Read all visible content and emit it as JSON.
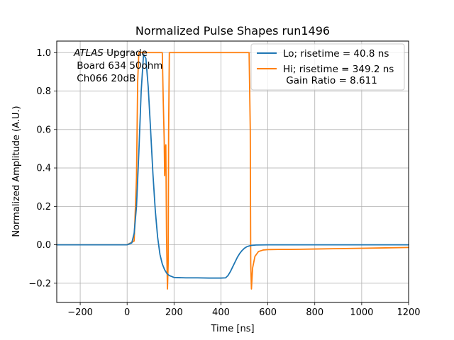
{
  "chart_data": {
    "type": "line",
    "title": "Normalized Pulse Shapes run1496",
    "xlabel": "Time [ns]",
    "ylabel": "Normalized Amplitude (A.U.)",
    "xlim": [
      -300,
      1200
    ],
    "ylim": [
      -0.3,
      1.06
    ],
    "xticks": [
      -200,
      0,
      200,
      400,
      600,
      800,
      1000,
      1200
    ],
    "xtick_labels": [
      "−200",
      "0",
      "200",
      "400",
      "600",
      "800",
      "1000",
      "1200"
    ],
    "yticks": [
      -0.2,
      0.0,
      0.2,
      0.4,
      0.6,
      0.8,
      1.0
    ],
    "ytick_labels": [
      "−0.2",
      "0.0",
      "0.2",
      "0.4",
      "0.6",
      "0.8",
      "1.0"
    ],
    "grid": true,
    "legend_position": "top-right",
    "annotation": {
      "italic": "ATLAS",
      "line1_rest": " Upgrade",
      "line2": " Board 634 50ohm",
      "line3": " Ch066 20dB"
    },
    "series": [
      {
        "name": "Lo",
        "legend_line1": "Lo; risetime = 40.8 ns",
        "legend_line2": "",
        "color": "#1f77b4",
        "x": [
          -300,
          0,
          20,
          30,
          40,
          50,
          60,
          70,
          80,
          90,
          100,
          110,
          120,
          130,
          140,
          150,
          160,
          170,
          180,
          200,
          250,
          300,
          350,
          400,
          420,
          430,
          440,
          450,
          460,
          470,
          480,
          490,
          500,
          510,
          520,
          530,
          550,
          600,
          700,
          800,
          900,
          1000,
          1100,
          1200
        ],
        "y": [
          0,
          0,
          0.01,
          0.06,
          0.2,
          0.48,
          0.8,
          0.99,
          0.97,
          0.82,
          0.6,
          0.37,
          0.18,
          0.04,
          -0.05,
          -0.1,
          -0.13,
          -0.15,
          -0.16,
          -0.17,
          -0.172,
          -0.172,
          -0.173,
          -0.173,
          -0.172,
          -0.16,
          -0.14,
          -0.115,
          -0.09,
          -0.065,
          -0.045,
          -0.03,
          -0.018,
          -0.01,
          -0.006,
          -0.003,
          -0.001,
          0,
          0,
          0,
          0,
          0,
          0,
          0
        ]
      },
      {
        "name": "Hi",
        "legend_line1": "Hi; risetime = 349.2 ns",
        "legend_line2": " Gain Ratio = 8.611",
        "color": "#ff7f0e",
        "x": [
          -300,
          0,
          30,
          40,
          45,
          50,
          150,
          154,
          158,
          160,
          162,
          165,
          168,
          170,
          172,
          175,
          177,
          180,
          183,
          185,
          520,
          525,
          527,
          530,
          535,
          545,
          560,
          580,
          600,
          650,
          700,
          800,
          900,
          1000,
          1100,
          1200
        ],
        "y": [
          0,
          0,
          0.02,
          0.35,
          0.85,
          1.0,
          1.0,
          0.75,
          0.55,
          0.36,
          0.5,
          0.52,
          0.05,
          -0.1,
          -0.23,
          -0.1,
          0.6,
          1.0,
          1.0,
          1.0,
          1.0,
          0.6,
          -0.1,
          -0.23,
          -0.12,
          -0.06,
          -0.035,
          -0.027,
          -0.025,
          -0.024,
          -0.024,
          -0.022,
          -0.02,
          -0.018,
          -0.016,
          -0.014
        ]
      }
    ]
  }
}
